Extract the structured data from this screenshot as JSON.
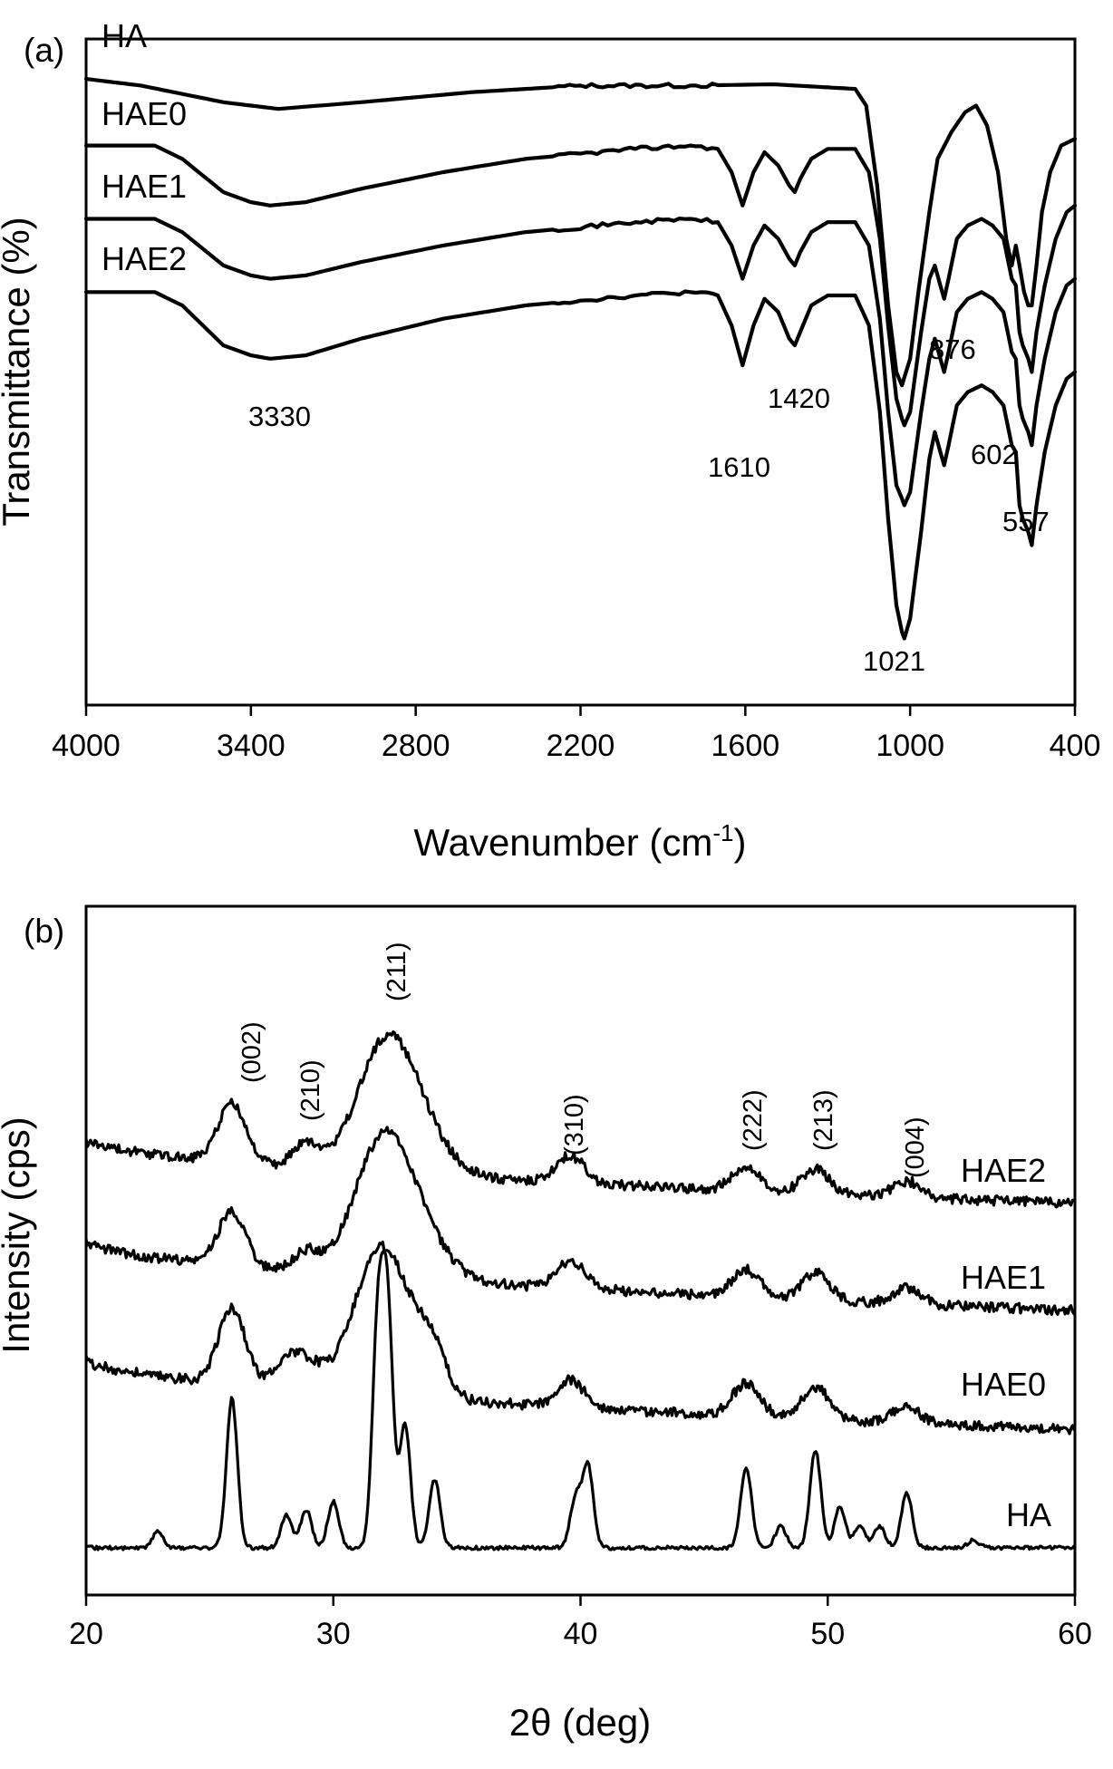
{
  "chart_data": [
    {
      "panel": "(a)",
      "type": "line",
      "xlabel": "Wavenumber (cm",
      "xlabel_sup": "-1",
      "xlabel_close": ")",
      "ylabel": "Transmittance (%)",
      "xlim": [
        4000,
        400
      ],
      "x_reversed": true,
      "xticks": [
        "4000",
        "3400",
        "2800",
        "2200",
        "1600",
        "1000",
        "400"
      ],
      "y_ticks_shown": false,
      "series": [
        {
          "name": "HA",
          "points": [
            [
              4000,
              0.94
            ],
            [
              3800,
              0.93
            ],
            [
              3500,
              0.905
            ],
            [
              3300,
              0.895
            ],
            [
              3000,
              0.905
            ],
            [
              2600,
              0.92
            ],
            [
              2200,
              0.93
            ],
            [
              1800,
              0.93
            ],
            [
              1500,
              0.932
            ],
            [
              1200,
              0.925
            ],
            [
              1160,
              0.9
            ],
            [
              1120,
              0.78
            ],
            [
              1080,
              0.6
            ],
            [
              1050,
              0.5
            ],
            [
              1030,
              0.48
            ],
            [
              1000,
              0.52
            ],
            [
              970,
              0.62
            ],
            [
              930,
              0.74
            ],
            [
              900,
              0.82
            ],
            [
              850,
              0.86
            ],
            [
              800,
              0.89
            ],
            [
              760,
              0.9
            ],
            [
              720,
              0.87
            ],
            [
              680,
              0.8
            ],
            [
              650,
              0.7
            ],
            [
              630,
              0.66
            ],
            [
              615,
              0.69
            ],
            [
              602,
              0.66
            ],
            [
              585,
              0.62
            ],
            [
              570,
              0.6
            ],
            [
              557,
              0.6
            ],
            [
              540,
              0.66
            ],
            [
              520,
              0.74
            ],
            [
              490,
              0.8
            ],
            [
              450,
              0.84
            ],
            [
              400,
              0.85
            ]
          ]
        },
        {
          "name": "HAE0",
          "points": [
            [
              4000,
              0.84
            ],
            [
              3750,
              0.84
            ],
            [
              3650,
              0.82
            ],
            [
              3500,
              0.77
            ],
            [
              3400,
              0.755
            ],
            [
              3330,
              0.75
            ],
            [
              3200,
              0.755
            ],
            [
              3000,
              0.775
            ],
            [
              2700,
              0.8
            ],
            [
              2400,
              0.82
            ],
            [
              2000,
              0.835
            ],
            [
              1800,
              0.84
            ],
            [
              1700,
              0.835
            ],
            [
              1650,
              0.8
            ],
            [
              1610,
              0.75
            ],
            [
              1570,
              0.8
            ],
            [
              1530,
              0.83
            ],
            [
              1480,
              0.81
            ],
            [
              1440,
              0.78
            ],
            [
              1420,
              0.77
            ],
            [
              1400,
              0.79
            ],
            [
              1360,
              0.82
            ],
            [
              1300,
              0.835
            ],
            [
              1200,
              0.835
            ],
            [
              1150,
              0.8
            ],
            [
              1110,
              0.7
            ],
            [
              1080,
              0.57
            ],
            [
              1050,
              0.46
            ],
            [
              1030,
              0.43
            ],
            [
              1021,
              0.42
            ],
            [
              1000,
              0.44
            ],
            [
              960,
              0.56
            ],
            [
              930,
              0.64
            ],
            [
              910,
              0.66
            ],
            [
              890,
              0.63
            ],
            [
              876,
              0.61
            ],
            [
              860,
              0.64
            ],
            [
              830,
              0.7
            ],
            [
              790,
              0.72
            ],
            [
              740,
              0.73
            ],
            [
              700,
              0.72
            ],
            [
              660,
              0.7
            ],
            [
              630,
              0.64
            ],
            [
              615,
              0.63
            ],
            [
              602,
              0.56
            ],
            [
              590,
              0.54
            ],
            [
              570,
              0.52
            ],
            [
              557,
              0.5
            ],
            [
              540,
              0.56
            ],
            [
              510,
              0.63
            ],
            [
              470,
              0.7
            ],
            [
              430,
              0.74
            ],
            [
              400,
              0.75
            ]
          ]
        },
        {
          "name": "HAE1",
          "points": [
            [
              4000,
              0.73
            ],
            [
              3750,
              0.73
            ],
            [
              3650,
              0.71
            ],
            [
              3500,
              0.66
            ],
            [
              3400,
              0.645
            ],
            [
              3330,
              0.64
            ],
            [
              3200,
              0.645
            ],
            [
              3000,
              0.665
            ],
            [
              2700,
              0.69
            ],
            [
              2400,
              0.71
            ],
            [
              2000,
              0.725
            ],
            [
              1800,
              0.73
            ],
            [
              1700,
              0.725
            ],
            [
              1650,
              0.69
            ],
            [
              1610,
              0.64
            ],
            [
              1570,
              0.69
            ],
            [
              1530,
              0.72
            ],
            [
              1480,
              0.7
            ],
            [
              1440,
              0.67
            ],
            [
              1420,
              0.66
            ],
            [
              1400,
              0.68
            ],
            [
              1360,
              0.71
            ],
            [
              1300,
              0.725
            ],
            [
              1200,
              0.725
            ],
            [
              1150,
              0.69
            ],
            [
              1110,
              0.58
            ],
            [
              1080,
              0.44
            ],
            [
              1050,
              0.33
            ],
            [
              1030,
              0.31
            ],
            [
              1021,
              0.3
            ],
            [
              1000,
              0.32
            ],
            [
              960,
              0.44
            ],
            [
              930,
              0.52
            ],
            [
              910,
              0.55
            ],
            [
              890,
              0.52
            ],
            [
              876,
              0.5
            ],
            [
              860,
              0.53
            ],
            [
              830,
              0.59
            ],
            [
              790,
              0.61
            ],
            [
              740,
              0.62
            ],
            [
              700,
              0.61
            ],
            [
              660,
              0.59
            ],
            [
              630,
              0.53
            ],
            [
              615,
              0.52
            ],
            [
              602,
              0.45
            ],
            [
              590,
              0.43
            ],
            [
              570,
              0.41
            ],
            [
              557,
              0.39
            ],
            [
              540,
              0.45
            ],
            [
              510,
              0.52
            ],
            [
              470,
              0.59
            ],
            [
              430,
              0.63
            ],
            [
              400,
              0.64
            ]
          ]
        },
        {
          "name": "HAE2",
          "points": [
            [
              4000,
              0.62
            ],
            [
              3750,
              0.62
            ],
            [
              3650,
              0.6
            ],
            [
              3500,
              0.54
            ],
            [
              3400,
              0.525
            ],
            [
              3330,
              0.52
            ],
            [
              3200,
              0.525
            ],
            [
              3000,
              0.55
            ],
            [
              2700,
              0.58
            ],
            [
              2400,
              0.6
            ],
            [
              2000,
              0.615
            ],
            [
              1800,
              0.62
            ],
            [
              1700,
              0.615
            ],
            [
              1650,
              0.57
            ],
            [
              1610,
              0.51
            ],
            [
              1570,
              0.57
            ],
            [
              1530,
              0.61
            ],
            [
              1480,
              0.59
            ],
            [
              1440,
              0.55
            ],
            [
              1420,
              0.54
            ],
            [
              1400,
              0.56
            ],
            [
              1360,
              0.6
            ],
            [
              1300,
              0.615
            ],
            [
              1200,
              0.615
            ],
            [
              1150,
              0.57
            ],
            [
              1110,
              0.44
            ],
            [
              1080,
              0.28
            ],
            [
              1050,
              0.15
            ],
            [
              1030,
              0.11
            ],
            [
              1021,
              0.1
            ],
            [
              1000,
              0.13
            ],
            [
              960,
              0.26
            ],
            [
              930,
              0.37
            ],
            [
              910,
              0.41
            ],
            [
              890,
              0.38
            ],
            [
              876,
              0.36
            ],
            [
              860,
              0.39
            ],
            [
              830,
              0.45
            ],
            [
              790,
              0.47
            ],
            [
              740,
              0.48
            ],
            [
              700,
              0.47
            ],
            [
              660,
              0.45
            ],
            [
              630,
              0.39
            ],
            [
              615,
              0.38
            ],
            [
              602,
              0.3
            ],
            [
              590,
              0.28
            ],
            [
              570,
              0.26
            ],
            [
              557,
              0.24
            ],
            [
              540,
              0.3
            ],
            [
              510,
              0.38
            ],
            [
              470,
              0.45
            ],
            [
              430,
              0.49
            ],
            [
              400,
              0.5
            ]
          ]
        }
      ],
      "annotations": [
        "3330",
        "1610",
        "1420",
        "1021",
        "876",
        "602",
        "557"
      ]
    },
    {
      "panel": "(b)",
      "type": "line",
      "xlabel": "2θ  (deg)",
      "ylabel": "Intensity (cps)",
      "xlim": [
        20,
        60
      ],
      "xticks": [
        "20",
        "30",
        "40",
        "50",
        "60"
      ],
      "y_ticks_shown": false,
      "series": [
        {
          "name": "HA",
          "peaks": [
            [
              25.9,
              0.55
            ],
            [
              28.1,
              0.12
            ],
            [
              28.9,
              0.14
            ],
            [
              30.0,
              0.17
            ],
            [
              31.8,
              0.8
            ],
            [
              32.2,
              0.85
            ],
            [
              32.9,
              0.45
            ],
            [
              34.1,
              0.25
            ],
            [
              39.8,
              0.18
            ],
            [
              40.3,
              0.3
            ],
            [
              46.7,
              0.3
            ],
            [
              48.1,
              0.08
            ],
            [
              49.5,
              0.36
            ],
            [
              50.5,
              0.15
            ],
            [
              51.3,
              0.08
            ],
            [
              52.1,
              0.08
            ],
            [
              53.2,
              0.2
            ],
            [
              22.9,
              0.06
            ],
            [
              55.9,
              0.03
            ]
          ]
        },
        {
          "name": "HAE0",
          "peaks": [
            [
              25.9,
              0.28
            ],
            [
              28.1,
              0.1
            ],
            [
              29.0,
              0.08
            ],
            [
              32.0,
              0.55
            ],
            [
              34.0,
              0.14
            ],
            [
              39.6,
              0.1
            ],
            [
              46.7,
              0.12
            ],
            [
              49.5,
              0.12
            ],
            [
              53.2,
              0.06
            ]
          ]
        },
        {
          "name": "HAE1",
          "peaks": [
            [
              25.9,
              0.2
            ],
            [
              28.9,
              0.07
            ],
            [
              32.0,
              0.48
            ],
            [
              33.5,
              0.12
            ],
            [
              39.6,
              0.1
            ],
            [
              46.7,
              0.1
            ],
            [
              49.5,
              0.1
            ],
            [
              53.2,
              0.06
            ]
          ]
        },
        {
          "name": "HAE2",
          "peaks": [
            [
              25.9,
              0.22
            ],
            [
              28.9,
              0.09
            ],
            [
              32.1,
              0.45
            ],
            [
              33.5,
              0.12
            ],
            [
              39.6,
              0.1
            ],
            [
              46.7,
              0.09
            ],
            [
              49.5,
              0.09
            ],
            [
              53.2,
              0.06
            ]
          ]
        }
      ],
      "annotations": [
        "(002)",
        "(210)",
        "(211)",
        "(310)",
        "(222)",
        "(213)",
        "(004)"
      ]
    }
  ],
  "panels": {
    "a": {
      "label": "(a)",
      "series_labels": [
        "HA",
        "HAE0",
        "HAE1",
        "HAE2"
      ],
      "peaks": [
        "3330",
        "1610",
        "1420",
        "1021",
        "876",
        "602",
        "557"
      ]
    },
    "b": {
      "label": "(b)",
      "series_labels": [
        "HAE2",
        "HAE1",
        "HAE0",
        "HA"
      ],
      "hkl": [
        "(002)",
        "(210)",
        "(211)",
        "(310)",
        "(222)",
        "(213)",
        "(004)"
      ]
    }
  }
}
